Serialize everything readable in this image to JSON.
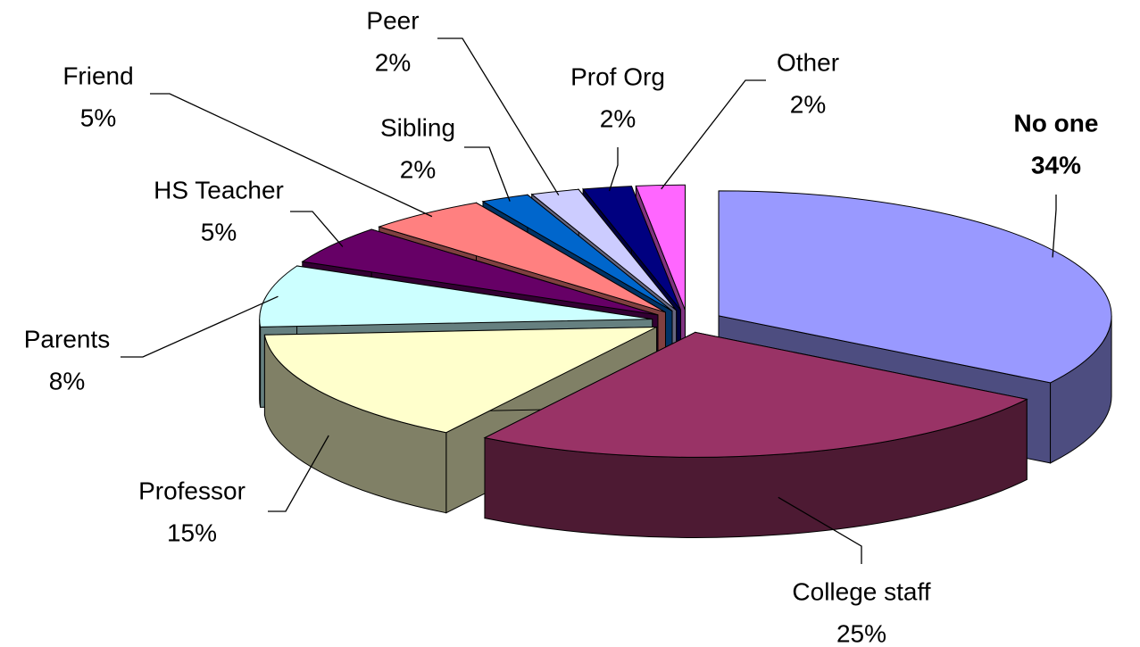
{
  "chart_data": {
    "type": "pie3d",
    "categories": [
      "No one",
      "College staff",
      "Professor",
      "Parents",
      "HS Teacher",
      "Friend",
      "Sibling",
      "Peer",
      "Prof Org",
      "Other"
    ],
    "values": [
      34,
      25,
      15,
      8,
      5,
      5,
      2,
      2,
      2,
      2
    ],
    "value_labels": [
      "34%",
      "25%",
      "15%",
      "8%",
      "5%",
      "5%",
      "2%",
      "2%",
      "2%",
      "2%"
    ],
    "colors": [
      "#9999ff",
      "#993366",
      "#ffffcc",
      "#ccffff",
      "#660066",
      "#ff8080",
      "#0066cc",
      "#ccccff",
      "#000080",
      "#ff66ff"
    ]
  }
}
